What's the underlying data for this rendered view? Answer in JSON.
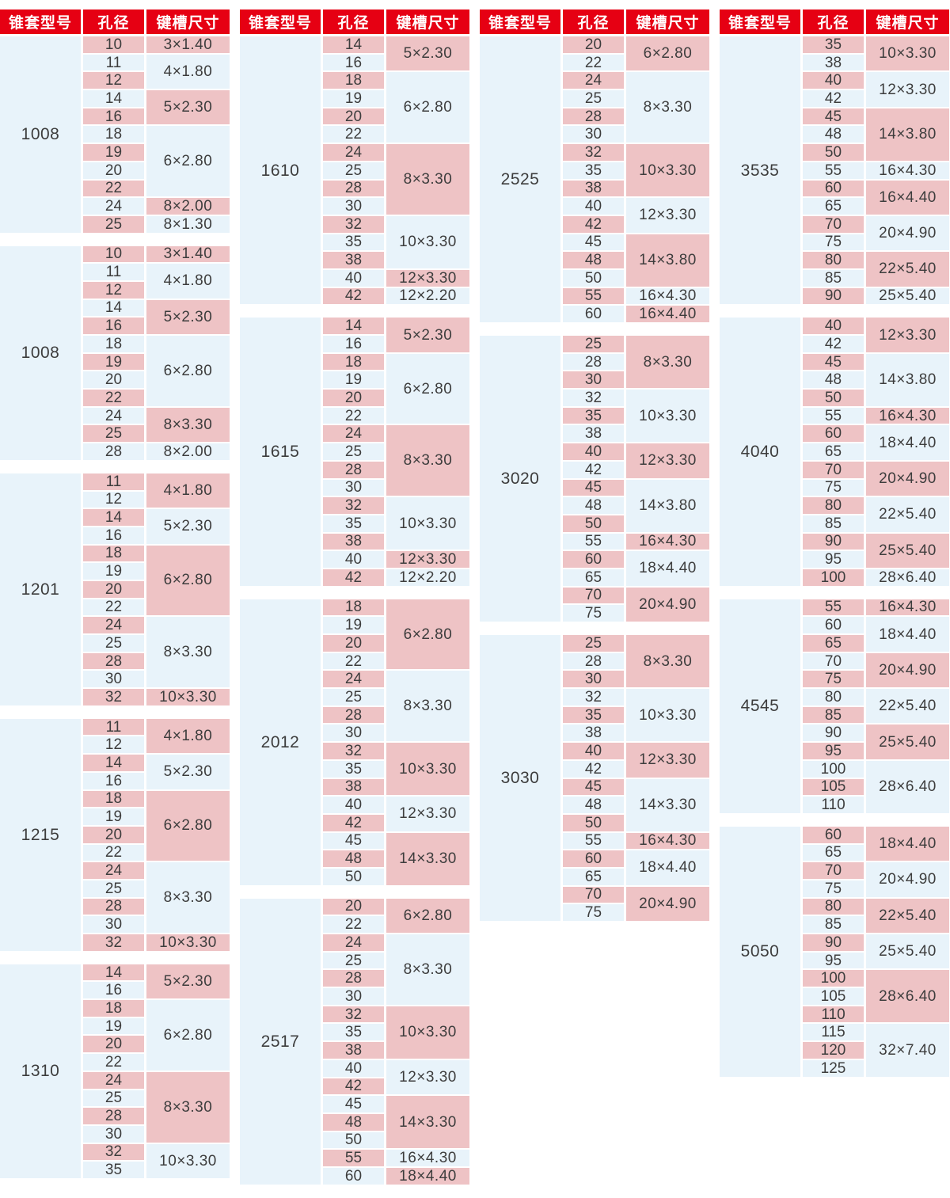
{
  "headers": [
    "锥套型号",
    "孔径",
    "键槽尺寸"
  ],
  "colors": {
    "header_bg": "#e60013",
    "header_text": "#ffffff",
    "row_pink": "#eec3c5",
    "row_blue": "#e8f3fa",
    "cell_text": "#3d3d3d",
    "page_bg": "#ffffff"
  },
  "columns": [
    {
      "tables": [
        {
          "model": "1008",
          "groups": [
            {
              "keyway": "3×1.40",
              "bores": [
                "10"
              ]
            },
            {
              "keyway": "4×1.80",
              "bores": [
                "11",
                "12"
              ]
            },
            {
              "keyway": "5×2.30",
              "bores": [
                "14",
                "16"
              ]
            },
            {
              "keyway": "6×2.80",
              "bores": [
                "18",
                "19",
                "20",
                "22"
              ]
            },
            {
              "keyway": "8×2.00",
              "bores": [
                "24"
              ]
            },
            {
              "keyway": "8×1.30",
              "bores": [
                "25"
              ]
            }
          ]
        },
        {
          "model": "1008",
          "groups": [
            {
              "keyway": "3×1.40",
              "bores": [
                "10"
              ]
            },
            {
              "keyway": "4×1.80",
              "bores": [
                "11",
                "12"
              ]
            },
            {
              "keyway": "5×2.30",
              "bores": [
                "14",
                "16"
              ]
            },
            {
              "keyway": "6×2.80",
              "bores": [
                "18",
                "19",
                "20",
                "22"
              ]
            },
            {
              "keyway": "8×3.30",
              "bores": [
                "24",
                "25"
              ]
            },
            {
              "keyway": "8×2.00",
              "bores": [
                "28"
              ]
            }
          ]
        },
        {
          "model": "1201",
          "groups": [
            {
              "keyway": "4×1.80",
              "bores": [
                "11",
                "12"
              ]
            },
            {
              "keyway": "5×2.30",
              "bores": [
                "14",
                "16"
              ]
            },
            {
              "keyway": "6×2.80",
              "bores": [
                "18",
                "19",
                "20",
                "22"
              ]
            },
            {
              "keyway": "8×3.30",
              "bores": [
                "24",
                "25",
                "28",
                "30"
              ]
            },
            {
              "keyway": "10×3.30",
              "bores": [
                "32"
              ]
            }
          ]
        },
        {
          "model": "1215",
          "groups": [
            {
              "keyway": "4×1.80",
              "bores": [
                "11",
                "12"
              ]
            },
            {
              "keyway": "5×2.30",
              "bores": [
                "14",
                "16"
              ]
            },
            {
              "keyway": "6×2.80",
              "bores": [
                "18",
                "19",
                "20",
                "22"
              ]
            },
            {
              "keyway": "8×3.30",
              "bores": [
                "24",
                "25",
                "28",
                "30"
              ]
            },
            {
              "keyway": "10×3.30",
              "bores": [
                "32"
              ]
            }
          ]
        },
        {
          "model": "1310",
          "groups": [
            {
              "keyway": "5×2.30",
              "bores": [
                "14",
                "16"
              ]
            },
            {
              "keyway": "6×2.80",
              "bores": [
                "18",
                "19",
                "20",
                "22"
              ]
            },
            {
              "keyway": "8×3.30",
              "bores": [
                "24",
                "25",
                "28",
                "30"
              ]
            },
            {
              "keyway": "10×3.30",
              "bores": [
                "32",
                "35"
              ]
            }
          ]
        }
      ]
    },
    {
      "tables": [
        {
          "model": "1610",
          "groups": [
            {
              "keyway": "5×2.30",
              "bores": [
                "14",
                "16"
              ]
            },
            {
              "keyway": "6×2.80",
              "bores": [
                "18",
                "19",
                "20",
                "22"
              ]
            },
            {
              "keyway": "8×3.30",
              "bores": [
                "24",
                "25",
                "28",
                "30"
              ]
            },
            {
              "keyway": "10×3.30",
              "bores": [
                "32",
                "35",
                "38"
              ]
            },
            {
              "keyway": "12×3.30",
              "bores": [
                "40"
              ]
            },
            {
              "keyway": "12×2.20",
              "bores": [
                "42"
              ]
            }
          ]
        },
        {
          "model": "1615",
          "groups": [
            {
              "keyway": "5×2.30",
              "bores": [
                "14",
                "16"
              ]
            },
            {
              "keyway": "6×2.80",
              "bores": [
                "18",
                "19",
                "20",
                "22"
              ]
            },
            {
              "keyway": "8×3.30",
              "bores": [
                "24",
                "25",
                "28",
                "30"
              ]
            },
            {
              "keyway": "10×3.30",
              "bores": [
                "32",
                "35",
                "38"
              ]
            },
            {
              "keyway": "12×3.30",
              "bores": [
                "40"
              ]
            },
            {
              "keyway": "12×2.20",
              "bores": [
                "42"
              ]
            }
          ]
        },
        {
          "model": "2012",
          "groups": [
            {
              "keyway": "6×2.80",
              "bores": [
                "18",
                "19",
                "20",
                "22"
              ]
            },
            {
              "keyway": "8×3.30",
              "bores": [
                "24",
                "25",
                "28",
                "30"
              ]
            },
            {
              "keyway": "10×3.30",
              "bores": [
                "32",
                "35",
                "38"
              ]
            },
            {
              "keyway": "12×3.30",
              "bores": [
                "40",
                "42"
              ]
            },
            {
              "keyway": "14×3.30",
              "bores": [
                "45",
                "48",
                "50"
              ]
            }
          ]
        },
        {
          "model": "2517",
          "groups": [
            {
              "keyway": "6×2.80",
              "bores": [
                "20",
                "22"
              ]
            },
            {
              "keyway": "8×3.30",
              "bores": [
                "24",
                "25",
                "28",
                "30"
              ]
            },
            {
              "keyway": "10×3.30",
              "bores": [
                "32",
                "35",
                "38"
              ]
            },
            {
              "keyway": "12×3.30",
              "bores": [
                "40",
                "42"
              ]
            },
            {
              "keyway": "14×3.30",
              "bores": [
                "45",
                "48",
                "50"
              ]
            },
            {
              "keyway": "16×4.30",
              "bores": [
                "55"
              ]
            },
            {
              "keyway": "18×4.40",
              "bores": [
                "60"
              ]
            }
          ]
        }
      ]
    },
    {
      "tables": [
        {
          "model": "2525",
          "groups": [
            {
              "keyway": "6×2.80",
              "bores": [
                "20",
                "22"
              ]
            },
            {
              "keyway": "8×3.30",
              "bores": [
                "24",
                "25",
                "28",
                "30"
              ]
            },
            {
              "keyway": "10×3.30",
              "bores": [
                "32",
                "35",
                "38"
              ]
            },
            {
              "keyway": "12×3.30",
              "bores": [
                "40",
                "42"
              ]
            },
            {
              "keyway": "14×3.80",
              "bores": [
                "45",
                "48",
                "50"
              ]
            },
            {
              "keyway": "16×4.30",
              "bores": [
                "55"
              ]
            },
            {
              "keyway": "16×4.40",
              "bores": [
                "60"
              ]
            }
          ]
        },
        {
          "model": "3020",
          "groups": [
            {
              "keyway": "8×3.30",
              "bores": [
                "25",
                "28",
                "30"
              ]
            },
            {
              "keyway": "10×3.30",
              "bores": [
                "32",
                "35",
                "38"
              ]
            },
            {
              "keyway": "12×3.30",
              "bores": [
                "40",
                "42"
              ]
            },
            {
              "keyway": "14×3.80",
              "bores": [
                "45",
                "48",
                "50"
              ]
            },
            {
              "keyway": "16×4.30",
              "bores": [
                "55"
              ]
            },
            {
              "keyway": "18×4.40",
              "bores": [
                "60",
                "65"
              ]
            },
            {
              "keyway": "20×4.90",
              "bores": [
                "70",
                "75"
              ]
            }
          ]
        },
        {
          "model": "3030",
          "groups": [
            {
              "keyway": "8×3.30",
              "bores": [
                "25",
                "28",
                "30"
              ]
            },
            {
              "keyway": "10×3.30",
              "bores": [
                "32",
                "35",
                "38"
              ]
            },
            {
              "keyway": "12×3.30",
              "bores": [
                "40",
                "42"
              ]
            },
            {
              "keyway": "14×3.30",
              "bores": [
                "45",
                "48",
                "50"
              ]
            },
            {
              "keyway": "16×4.30",
              "bores": [
                "55"
              ]
            },
            {
              "keyway": "18×4.40",
              "bores": [
                "60",
                "65"
              ]
            },
            {
              "keyway": "20×4.90",
              "bores": [
                "70",
                "75"
              ]
            }
          ]
        }
      ]
    },
    {
      "tables": [
        {
          "model": "3535",
          "groups": [
            {
              "keyway": "10×3.30",
              "bores": [
                "35",
                "38"
              ]
            },
            {
              "keyway": "12×3.30",
              "bores": [
                "40",
                "42"
              ]
            },
            {
              "keyway": "14×3.80",
              "bores": [
                "45",
                "48",
                "50"
              ]
            },
            {
              "keyway": "16×4.30",
              "bores": [
                "55"
              ]
            },
            {
              "keyway": "16×4.40",
              "bores": [
                "60",
                "65"
              ]
            },
            {
              "keyway": "20×4.90",
              "bores": [
                "70",
                "75"
              ]
            },
            {
              "keyway": "22×5.40",
              "bores": [
                "80",
                "85"
              ]
            },
            {
              "keyway": "25×5.40",
              "bores": [
                "90"
              ]
            }
          ]
        },
        {
          "model": "4040",
          "groups": [
            {
              "keyway": "12×3.30",
              "bores": [
                "40",
                "42"
              ]
            },
            {
              "keyway": "14×3.80",
              "bores": [
                "45",
                "48",
                "50"
              ]
            },
            {
              "keyway": "16×4.30",
              "bores": [
                "55"
              ]
            },
            {
              "keyway": "18×4.40",
              "bores": [
                "60",
                "65"
              ]
            },
            {
              "keyway": "20×4.90",
              "bores": [
                "70",
                "75"
              ]
            },
            {
              "keyway": "22×5.40",
              "bores": [
                "80",
                "85"
              ]
            },
            {
              "keyway": "25×5.40",
              "bores": [
                "90",
                "95"
              ]
            },
            {
              "keyway": "28×6.40",
              "bores": [
                "100"
              ]
            }
          ]
        },
        {
          "model": "4545",
          "groups": [
            {
              "keyway": "16×4.30",
              "bores": [
                "55"
              ]
            },
            {
              "keyway": "18×4.40",
              "bores": [
                "60",
                "65"
              ]
            },
            {
              "keyway": "20×4.90",
              "bores": [
                "70",
                "75"
              ]
            },
            {
              "keyway": "22×5.40",
              "bores": [
                "80",
                "85"
              ]
            },
            {
              "keyway": "25×5.40",
              "bores": [
                "90",
                "95"
              ]
            },
            {
              "keyway": "28×6.40",
              "bores": [
                "100",
                "105",
                "110"
              ]
            }
          ]
        },
        {
          "model": "5050",
          "groups": [
            {
              "keyway": "18×4.40",
              "bores": [
                "60",
                "65"
              ]
            },
            {
              "keyway": "20×4.90",
              "bores": [
                "70",
                "75"
              ]
            },
            {
              "keyway": "22×5.40",
              "bores": [
                "80",
                "85"
              ]
            },
            {
              "keyway": "25×5.40",
              "bores": [
                "90",
                "95"
              ]
            },
            {
              "keyway": "28×6.40",
              "bores": [
                "100",
                "105",
                "110"
              ]
            },
            {
              "keyway": "32×7.40",
              "bores": [
                "115",
                "120",
                "125"
              ]
            }
          ]
        }
      ]
    }
  ]
}
